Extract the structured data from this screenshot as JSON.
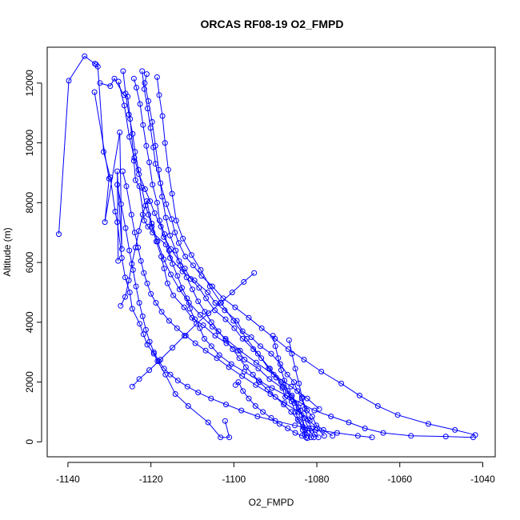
{
  "chart_data": {
    "type": "line",
    "title": "ORCAS RF08-19 O2_FMPD",
    "xlabel": "O2_FMPD",
    "ylabel": "Altitude (m)",
    "xlim": [
      -1145,
      -1037
    ],
    "ylim": [
      -500,
      13200
    ],
    "x_ticks": [
      -1140,
      -1120,
      -1100,
      -1080,
      -1060,
      -1040
    ],
    "y_ticks": [
      0,
      2000,
      4000,
      6000,
      8000,
      10000,
      12000
    ],
    "series_color": "#0000ff",
    "marker": "open-circle",
    "series": [
      {
        "x": [
          -1142.2,
          -1139.8,
          -1136.0,
          -1133.5,
          -1133.2,
          -1132.8,
          -1131.4,
          -1129.8,
          -1128.6,
          -1128.1,
          -1127.0,
          -1126.2,
          -1125.1,
          -1124.5,
          -1122.7,
          -1121.8,
          -1120.9,
          -1119.3,
          -1118.4,
          -1116.5,
          -1114.1,
          -1111.0,
          -1106.2,
          -1103.2,
          -1101.1,
          -1102.1
        ],
        "y": [
          6950,
          12080,
          12900,
          12650,
          12620,
          12550,
          9700,
          8850,
          7700,
          7350,
          6150,
          5500,
          5000,
          4450,
          3950,
          3600,
          3250,
          2950,
          2700,
          2250,
          1600,
          1200,
          650,
          150,
          150,
          700
        ]
      },
      {
        "x": [
          -1133.6,
          -1130.1,
          -1131.1,
          -1127.5,
          -1127.0,
          -1128.1,
          -1127.9
        ],
        "y": [
          11700,
          8800,
          7350,
          10350,
          6450,
          9050,
          6050
        ]
      },
      {
        "x": [
          -1132.3,
          -1129.8,
          -1128.8,
          -1126.5,
          -1125.6,
          -1125.0,
          -1124.1,
          -1123.7,
          -1122.8,
          -1121.6,
          -1120.7,
          -1119.6,
          -1116.4,
          -1115.4,
          -1112.4,
          -1109.5,
          -1106.3,
          -1104.5,
          -1102.2,
          -1099.3,
          -1097.9,
          -1095.8,
          -1093.6,
          -1091.0,
          -1088.8,
          -1087.1,
          -1085.5,
          -1084.7,
          -1083.6,
          -1082.4,
          -1081.1,
          -1080.1,
          -1078.4,
          -1076.2
        ],
        "y": [
          12000,
          11900,
          12150,
          11600,
          11550,
          10800,
          9400,
          8750,
          8550,
          7400,
          7200,
          7000,
          6600,
          6150,
          5700,
          5400,
          5000,
          4650,
          4400,
          4050,
          3700,
          3500,
          3200,
          2950,
          2600,
          2250,
          2000,
          1700,
          1450,
          1050,
          850,
          550,
          400,
          200
        ]
      },
      {
        "x": [
          -1127.8,
          -1126.4,
          -1125.2,
          -1124.0,
          -1122.9,
          -1121.4,
          -1120.2,
          -1119.1,
          -1117.6,
          -1116.9,
          -1115.2,
          -1113.2,
          -1111.8,
          -1110.4,
          -1108.4,
          -1106.7,
          -1104.6,
          -1102.0,
          -1099.9,
          -1097.9,
          -1095.3,
          -1093.4,
          -1091.6,
          -1089.8,
          -1088.2,
          -1086.1,
          -1084.4,
          -1083.1,
          -1082.0,
          -1080.7
        ],
        "y": [
          12050,
          11250,
          10200,
          9500,
          8950,
          8450,
          8050,
          7650,
          7200,
          6850,
          6450,
          6050,
          5800,
          5450,
          5150,
          4800,
          4400,
          4100,
          3800,
          3450,
          3100,
          2800,
          2450,
          2150,
          1850,
          1500,
          1150,
          800,
          450,
          150
        ]
      },
      {
        "x": [
          -1126.7,
          -1126.1,
          -1125.3,
          -1124.4,
          -1123.8,
          -1123.0,
          -1122.2,
          -1121.3,
          -1120.6,
          -1119.8,
          -1118.7,
          -1117.5,
          -1116.8,
          -1116.0,
          -1114.6,
          -1112.0,
          -1110.1,
          -1107.4,
          -1104.5,
          -1101.8,
          -1099.0,
          -1097.4,
          -1094.1,
          -1091.4,
          -1088.3,
          -1087.6,
          -1085.4,
          -1083.7,
          -1082.9
        ],
        "y": [
          12400,
          11650,
          10950,
          10300,
          9700,
          9100,
          8500,
          7900,
          7600,
          7200,
          6700,
          6200,
          5800,
          5300,
          4900,
          4500,
          4150,
          3900,
          3550,
          3300,
          3050,
          2750,
          2450,
          2100,
          1800,
          1500,
          1300,
          900,
          250
        ]
      },
      {
        "x": [
          -1124.1,
          -1123.5,
          -1122.6,
          -1121.9,
          -1121.1,
          -1120.4,
          -1119.6,
          -1118.5,
          -1117.9,
          -1116.7,
          -1115.6,
          -1114.8,
          -1113.6,
          -1112.5,
          -1111.3,
          -1110.6,
          -1109.4,
          -1108.2,
          -1107.1,
          -1105.4,
          -1103.5,
          -1100.6,
          -1097.5,
          -1094.0,
          -1090.8,
          -1087.3,
          -1083.9,
          -1080.6,
          -1076.6,
          -1072.3,
          -1068.4,
          -1064.0,
          -1057.3,
          -1048.9,
          -1042.3
        ],
        "y": [
          12150,
          11850,
          11300,
          10600,
          9900,
          9350,
          8600,
          8000,
          7400,
          6950,
          6400,
          5950,
          5550,
          5150,
          4800,
          4450,
          4100,
          3800,
          3450,
          3200,
          2900,
          2600,
          2350,
          2050,
          1800,
          1550,
          1300,
          1050,
          850,
          650,
          450,
          300,
          200,
          180,
          150
        ]
      },
      {
        "x": [
          -1122.1,
          -1121.6,
          -1120.8,
          -1120.1,
          -1119.4,
          -1118.9,
          -1117.7,
          -1116.3,
          -1115.0,
          -1114.2,
          -1113.3,
          -1111.7,
          -1109.8,
          -1107.8,
          -1105.2,
          -1102.6,
          -1099.7,
          -1096.4,
          -1093.3,
          -1090.1,
          -1086.9,
          -1083.1,
          -1078.9,
          -1074.1,
          -1069.7,
          -1065.3,
          -1060.5,
          -1053.1,
          -1046.7,
          -1041.8
        ],
        "y": [
          12400,
          11800,
          11150,
          10500,
          9850,
          9300,
          8650,
          7950,
          7450,
          7000,
          6650,
          6200,
          5900,
          5550,
          5200,
          4800,
          4500,
          4150,
          3800,
          3450,
          3100,
          2750,
          2350,
          1950,
          1550,
          1200,
          900,
          600,
          400,
          230
        ]
      },
      {
        "x": [
          -1121.0,
          -1121.5,
          -1120.6,
          -1119.7,
          -1118.9,
          -1118.1,
          -1117.3,
          -1116.4,
          -1115.4,
          -1114.0,
          -1112.9,
          -1111.4,
          -1110.0,
          -1108.6,
          -1107.0,
          -1105.4,
          -1103.7,
          -1102.0,
          -1100.3,
          -1098.7,
          -1097.1,
          -1095.4,
          -1093.8,
          -1091.9,
          -1090.0,
          -1088.0,
          -1086.2,
          -1084.6,
          -1083.3,
          -1082.2,
          -1081.4
        ],
        "y": [
          12300,
          12000,
          11400,
          10700,
          9900,
          9100,
          8200,
          7500,
          6900,
          6400,
          5900,
          5500,
          5100,
          4700,
          4350,
          4000,
          3700,
          3400,
          3100,
          2800,
          2500,
          2250,
          2000,
          1750,
          1500,
          1250,
          1000,
          750,
          500,
          300,
          150
        ]
      },
      {
        "x": [
          -1118.5,
          -1118.0,
          -1117.2,
          -1116.6,
          -1115.8,
          -1114.9,
          -1113.9,
          -1112.3,
          -1110.2,
          -1108.0,
          -1105.8,
          -1103.1,
          -1100.1,
          -1096.9,
          -1094.2,
          -1091.3,
          -1088.6,
          -1086.0,
          -1083.9,
          -1082.8
        ],
        "y": [
          12200,
          11600,
          10900,
          10000,
          9100,
          8300,
          7400,
          6800,
          6250,
          5750,
          5200,
          4650,
          4050,
          3450,
          2950,
          2450,
          2000,
          1550,
          1050,
          400
        ]
      },
      {
        "x": [
          -1126.8,
          -1125.9,
          -1124.7,
          -1123.9,
          -1123.1,
          -1122.4,
          -1121.7,
          -1120.9,
          -1120.0,
          -1118.8,
          -1117.4,
          -1115.6,
          -1113.7,
          -1111.6,
          -1109.3,
          -1106.8,
          -1104.1,
          -1101.2,
          -1098.0,
          -1094.7,
          -1091.2,
          -1087.8,
          -1084.4,
          -1081.7,
          -1079.9,
          -1078.2
        ],
        "y": [
          9050,
          8550,
          7600,
          7000,
          6500,
          6050,
          5650,
          5300,
          4950,
          4650,
          4350,
          4050,
          3800,
          3550,
          3300,
          3050,
          2800,
          2500,
          2200,
          1900,
          1600,
          1300,
          1000,
          700,
          450,
          200
        ]
      },
      {
        "x": [
          -1128.1,
          -1127.2,
          -1126.1,
          -1125.2,
          -1124.3,
          -1123.6,
          -1122.8,
          -1122.0,
          -1121.2,
          -1120.3,
          -1119.3,
          -1118.1,
          -1116.8,
          -1115.3,
          -1113.5,
          -1111.2,
          -1108.6,
          -1105.5,
          -1101.9,
          -1098.2,
          -1094.3,
          -1090.0,
          -1085.3,
          -1080.2,
          -1075.1,
          -1070.1,
          -1066.7
        ],
        "y": [
          8600,
          7950,
          7150,
          6400,
          5750,
          5200,
          4650,
          4200,
          3750,
          3350,
          3000,
          2700,
          2450,
          2250,
          2050,
          1850,
          1650,
          1450,
          1250,
          1050,
          850,
          700,
          550,
          400,
          300,
          200,
          150
        ]
      },
      {
        "x": [
          -1127.3,
          -1126.2,
          -1125.3,
          -1124.6,
          -1123.7,
          -1122.9,
          -1122.0,
          -1121.0,
          -1119.8,
          -1118.4,
          -1116.9,
          -1115.2,
          -1113.1,
          -1110.8,
          -1108.1,
          -1105.2,
          -1102.0,
          -1098.5,
          -1094.6,
          -1090.4,
          -1086.2,
          -1082.3,
          -1079.4
        ],
        "y": [
          4550,
          4850,
          5400,
          5950,
          6500,
          7050,
          7600,
          8050,
          7300,
          6700,
          6100,
          5600,
          5100,
          4650,
          4250,
          3850,
          3450,
          3050,
          2650,
          2250,
          1850,
          1450,
          1100
        ]
      },
      {
        "x": [
          -1095.1,
          -1097.6,
          -1100.4,
          -1103.2,
          -1106.1,
          -1109.0,
          -1111.9,
          -1114.8,
          -1117.7,
          -1120.4,
          -1122.8,
          -1124.5
        ],
        "y": [
          5650,
          5350,
          5000,
          4650,
          4300,
          3950,
          3550,
          3150,
          2750,
          2400,
          2100,
          1850
        ]
      },
      {
        "x": [
          -1086.7,
          -1086.0,
          -1085.2,
          -1084.3,
          -1083.6,
          -1082.9,
          -1082.1,
          -1081.3,
          -1080.5,
          -1079.6
        ],
        "y": [
          3400,
          2950,
          2450,
          1950,
          1500,
          1100,
          750,
          450,
          250,
          150
        ]
      },
      {
        "x": [
          -1090.6,
          -1090.0,
          -1089.3,
          -1088.6,
          -1087.8,
          -1087.0,
          -1086.1,
          -1085.2,
          -1084.3,
          -1083.4,
          -1082.6
        ],
        "y": [
          3550,
          3200,
          2800,
          2400,
          2050,
          1700,
          1350,
          1000,
          700,
          400,
          150
        ]
      },
      {
        "x": [
          -1099.6,
          -1098.9,
          -1097.8,
          -1096.4,
          -1094.8,
          -1093.0,
          -1091.0,
          -1089.0,
          -1087.0,
          -1085.2,
          -1083.6,
          -1082.3
        ],
        "y": [
          1900,
          2000,
          1700,
          1450,
          1200,
          1000,
          800,
          600,
          450,
          300,
          200,
          120
        ]
      }
    ]
  }
}
